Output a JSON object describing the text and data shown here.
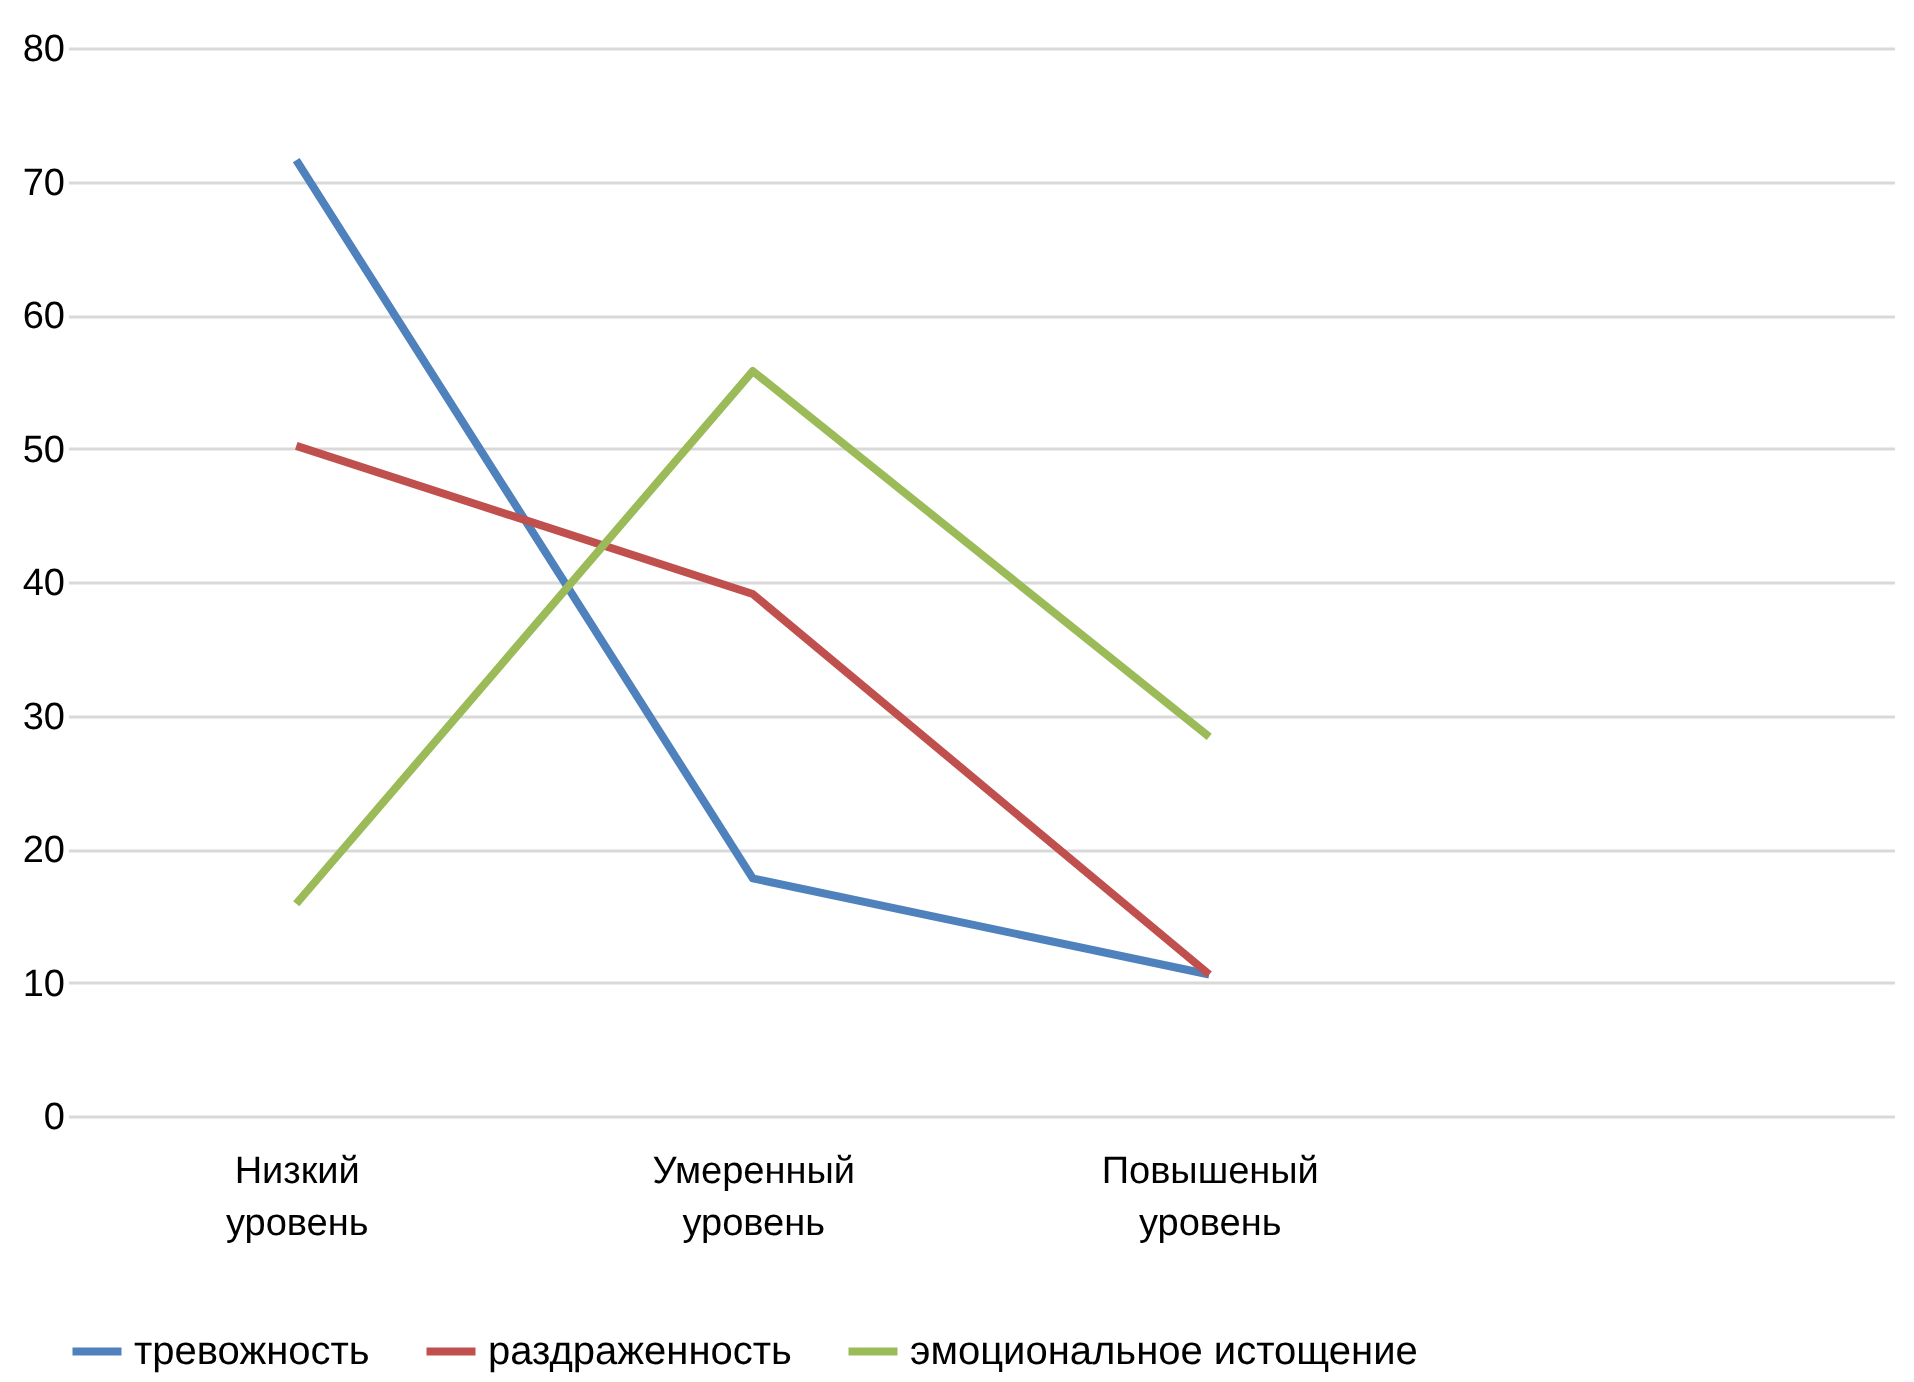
{
  "chart_data": {
    "type": "line",
    "categories": [
      "Низкий уровень",
      "Умеренный уровень",
      "Повышеный уровень",
      null
    ],
    "series": [
      {
        "name": "тревожность",
        "color": "#4f81bd",
        "values": [
          71.6,
          17.8,
          10.6,
          null
        ]
      },
      {
        "name": "раздраженность",
        "color": "#c0504d",
        "values": [
          50.2,
          39.1,
          10.6,
          null
        ]
      },
      {
        "name": "эмоциональное истощение",
        "color": "#9bbb59",
        "values": [
          15.9,
          55.8,
          28.4,
          null
        ]
      }
    ],
    "ylim": [
      0,
      80
    ],
    "yticks": [
      0,
      10,
      20,
      30,
      40,
      50,
      60,
      70,
      80
    ],
    "grid": "y",
    "legend": "bottom",
    "marker": "none",
    "line_style": "solid"
  }
}
